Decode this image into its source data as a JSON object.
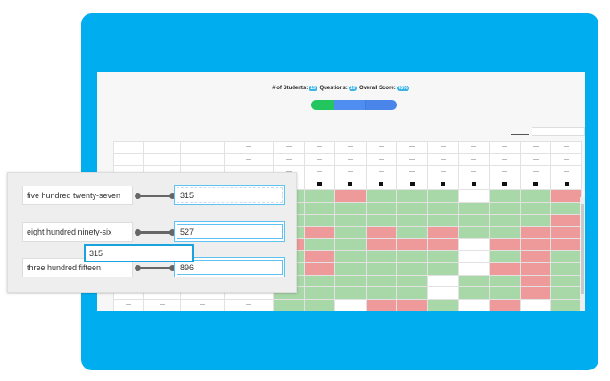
{
  "stats": {
    "students_label": "# of Students:",
    "students": "15",
    "questions_label": "Questions:",
    "questions": "10",
    "score_label": "Overall Score:",
    "score": "65%"
  },
  "progress": {
    "correct_fraction": 0.27,
    "colors": {
      "correct": "#22c55e",
      "remaining": "#4f8df0"
    }
  },
  "grid": {
    "rows": [
      [
        "G",
        "G",
        "R",
        "G",
        "G",
        "G",
        "W",
        "G",
        "G",
        "R"
      ],
      [
        "G",
        "G",
        "G",
        "G",
        "G",
        "G",
        "G",
        "G",
        "G",
        "G"
      ],
      [
        "G",
        "G",
        "G",
        "G",
        "G",
        "G",
        "G",
        "G",
        "G",
        "R"
      ],
      [
        "G",
        "R",
        "G",
        "R",
        "G",
        "R",
        "G",
        "G",
        "R",
        "R"
      ],
      [
        "R",
        "G",
        "G",
        "R",
        "R",
        "R",
        "W",
        "R",
        "R",
        "R"
      ],
      [
        "G",
        "R",
        "G",
        "G",
        "G",
        "G",
        "W",
        "G",
        "R",
        "G"
      ],
      [
        "G",
        "R",
        "G",
        "G",
        "G",
        "G",
        "W",
        "R",
        "R",
        "G"
      ],
      [
        "G",
        "G",
        "G",
        "G",
        "G",
        "W",
        "G",
        "G",
        "R",
        "G"
      ],
      [
        "G",
        "G",
        "G",
        "G",
        "G",
        "W",
        "G",
        "G",
        "R",
        "G"
      ],
      [
        "G",
        "G",
        "W",
        "R",
        "R",
        "G",
        "W",
        "R",
        "W",
        "G"
      ]
    ],
    "colors": {
      "correct": "#a8d8a8",
      "incorrect": "#ef9a9a",
      "blank": "#ffffff"
    }
  },
  "matching": {
    "items": [
      {
        "label": "five hundred twenty-seven",
        "answer": "315"
      },
      {
        "label": "eight hundred ninety-six",
        "answer": "527"
      },
      {
        "label": "three hundred fifteen",
        "answer": "896"
      }
    ],
    "dragging": "315"
  }
}
